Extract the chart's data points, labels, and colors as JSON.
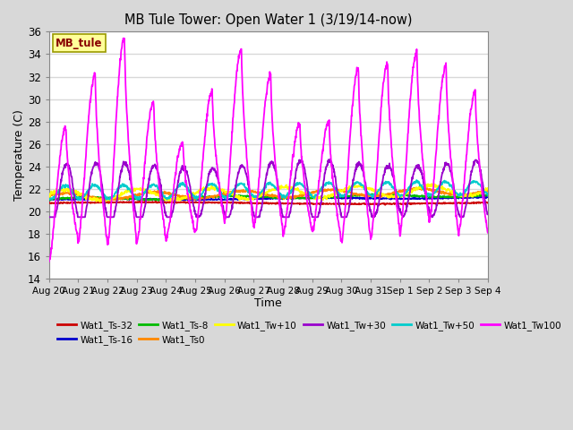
{
  "title": "MB Tule Tower: Open Water 1 (3/19/14-now)",
  "xlabel": "Time",
  "ylabel": "Temperature (C)",
  "ylim": [
    14,
    36
  ],
  "yticks": [
    14,
    16,
    18,
    20,
    22,
    24,
    26,
    28,
    30,
    32,
    34,
    36
  ],
  "bg_color": "#d8d8d8",
  "plot_bg_color": "#ffffff",
  "grid_color": "#d8d8d8",
  "series_colors": {
    "Wat1_Ts-32": "#cc0000",
    "Wat1_Ts-16": "#0000cc",
    "Wat1_Ts-8": "#00bb00",
    "Wat1_Ts0": "#ff8800",
    "Wat1_Tw+10": "#ffff00",
    "Wat1_Tw+30": "#9900cc",
    "Wat1_Tw+50": "#00cccc",
    "Wat1_Tw100": "#ff00ff"
  },
  "x_labels": [
    "Aug 20",
    "Aug 21",
    "Aug 22",
    "Aug 23",
    "Aug 24",
    "Aug 25",
    "Aug 26",
    "Aug 27",
    "Aug 28",
    "Aug 29",
    "Aug 30",
    "Aug 31",
    "Sep 1",
    "Sep 2",
    "Sep 3",
    "Sep 4"
  ],
  "station_label": "MB_tule",
  "station_label_color": "#880000",
  "station_box_color": "#ffff99",
  "station_box_edge": "#999900"
}
